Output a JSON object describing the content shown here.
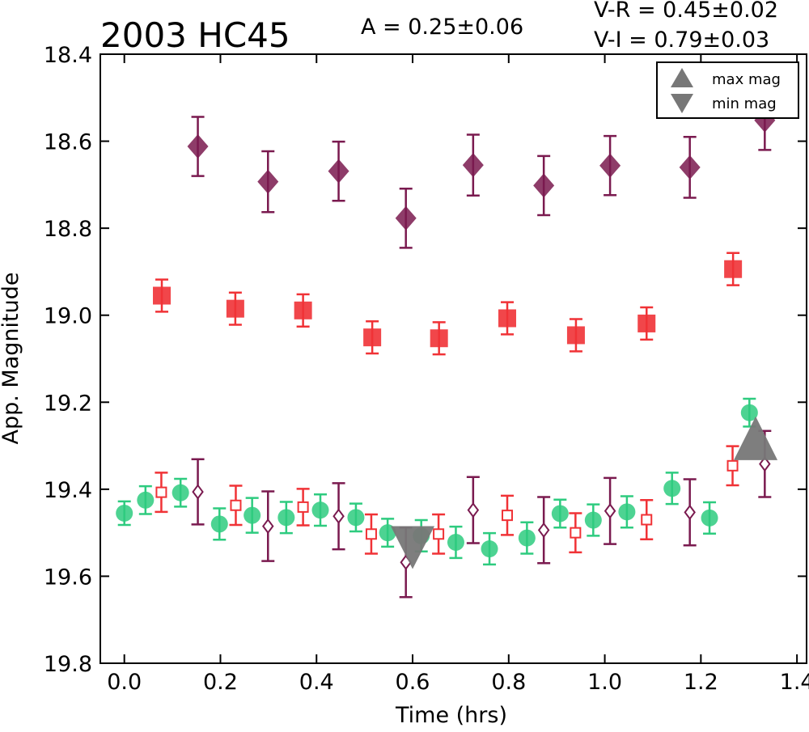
{
  "chart_data": {
    "type": "scatter",
    "title": "2003 HC45",
    "annotations": {
      "amplitude": "A  = 0.25±0.06",
      "v_r": "V-R = 0.45±0.02",
      "v_i": "V-I  = 0.79±0.03"
    },
    "xlabel": "Time (hrs)",
    "ylabel": "App. Magnitude",
    "xlim": [
      -0.05,
      1.42
    ],
    "ylim": [
      19.8,
      18.4
    ],
    "y_inverted": true,
    "grid": false,
    "xticks": [
      "0.0",
      "0.2",
      "0.4",
      "0.6",
      "0.8",
      "1.0",
      "1.2",
      "1.4"
    ],
    "xtick_values": [
      0.0,
      0.2,
      0.4,
      0.6,
      0.8,
      1.0,
      1.2,
      1.4
    ],
    "yticks": [
      "18.4",
      "18.6",
      "18.8",
      "19.0",
      "19.2",
      "19.4",
      "19.6",
      "19.8"
    ],
    "ytick_values": [
      18.4,
      18.6,
      18.8,
      19.0,
      19.2,
      19.4,
      19.6,
      19.8
    ],
    "legend": {
      "placement": "top-right",
      "entries": [
        {
          "label": "max mag",
          "marker": "triangle-up",
          "color": "#777777"
        },
        {
          "label": "min mag",
          "marker": "triangle-down",
          "color": "#777777"
        }
      ]
    },
    "series": [
      {
        "marker": "diamond-filled",
        "color": "#7a1a4f",
        "points": [
          {
            "x": 0.153,
            "y": 18.612,
            "err": 0.068
          },
          {
            "x": 0.299,
            "y": 18.693,
            "err": 0.07
          },
          {
            "x": 0.446,
            "y": 18.669,
            "err": 0.068
          },
          {
            "x": 0.586,
            "y": 18.777,
            "err": 0.068
          },
          {
            "x": 0.726,
            "y": 18.655,
            "err": 0.07
          },
          {
            "x": 0.873,
            "y": 18.702,
            "err": 0.068
          },
          {
            "x": 1.011,
            "y": 18.656,
            "err": 0.068
          },
          {
            "x": 1.177,
            "y": 18.66,
            "err": 0.07
          },
          {
            "x": 1.333,
            "y": 18.552,
            "err": 0.068
          }
        ]
      },
      {
        "marker": "square-filled",
        "color": "#f03236",
        "points": [
          {
            "x": 0.078,
            "y": 18.955,
            "err": 0.037
          },
          {
            "x": 0.231,
            "y": 18.985,
            "err": 0.037
          },
          {
            "x": 0.372,
            "y": 18.989,
            "err": 0.037
          },
          {
            "x": 0.516,
            "y": 19.051,
            "err": 0.037
          },
          {
            "x": 0.655,
            "y": 19.053,
            "err": 0.037
          },
          {
            "x": 0.797,
            "y": 19.007,
            "err": 0.037
          },
          {
            "x": 0.94,
            "y": 19.046,
            "err": 0.037
          },
          {
            "x": 1.087,
            "y": 19.019,
            "err": 0.037
          },
          {
            "x": 1.267,
            "y": 18.894,
            "err": 0.037
          }
        ]
      },
      {
        "marker": "circle-filled",
        "color": "#2ecb7f",
        "points": [
          {
            "x": 0.0,
            "y": 19.455,
            "err": 0.027
          },
          {
            "x": 0.044,
            "y": 19.425,
            "err": 0.032
          },
          {
            "x": 0.117,
            "y": 19.408,
            "err": 0.032
          },
          {
            "x": 0.198,
            "y": 19.48,
            "err": 0.036
          },
          {
            "x": 0.266,
            "y": 19.46,
            "err": 0.04
          },
          {
            "x": 0.337,
            "y": 19.465,
            "err": 0.036
          },
          {
            "x": 0.408,
            "y": 19.448,
            "err": 0.036
          },
          {
            "x": 0.482,
            "y": 19.465,
            "err": 0.032
          },
          {
            "x": 0.548,
            "y": 19.5,
            "err": 0.032
          },
          {
            "x": 0.618,
            "y": 19.507,
            "err": 0.036
          },
          {
            "x": 0.69,
            "y": 19.522,
            "err": 0.036
          },
          {
            "x": 0.76,
            "y": 19.537,
            "err": 0.036
          },
          {
            "x": 0.838,
            "y": 19.512,
            "err": 0.036
          },
          {
            "x": 0.907,
            "y": 19.456,
            "err": 0.032
          },
          {
            "x": 0.976,
            "y": 19.471,
            "err": 0.036
          },
          {
            "x": 1.046,
            "y": 19.452,
            "err": 0.036
          },
          {
            "x": 1.14,
            "y": 19.398,
            "err": 0.036
          },
          {
            "x": 1.218,
            "y": 19.466,
            "err": 0.036
          },
          {
            "x": 1.301,
            "y": 19.224,
            "err": 0.032
          }
        ]
      },
      {
        "marker": "square-open",
        "color": "#f03236",
        "points": [
          {
            "x": 0.077,
            "y": 19.407,
            "err": 0.045
          },
          {
            "x": 0.232,
            "y": 19.437,
            "err": 0.045
          },
          {
            "x": 0.372,
            "y": 19.441,
            "err": 0.042
          },
          {
            "x": 0.514,
            "y": 19.503,
            "err": 0.045
          },
          {
            "x": 0.654,
            "y": 19.503,
            "err": 0.045
          },
          {
            "x": 0.797,
            "y": 19.46,
            "err": 0.045
          },
          {
            "x": 0.939,
            "y": 19.5,
            "err": 0.045
          },
          {
            "x": 1.087,
            "y": 19.47,
            "err": 0.045
          },
          {
            "x": 1.266,
            "y": 19.346,
            "err": 0.045
          }
        ]
      },
      {
        "marker": "diamond-open",
        "color": "#7a1a4f",
        "points": [
          {
            "x": 0.153,
            "y": 19.406,
            "err": 0.075
          },
          {
            "x": 0.299,
            "y": 19.485,
            "err": 0.08
          },
          {
            "x": 0.446,
            "y": 19.462,
            "err": 0.076
          },
          {
            "x": 0.586,
            "y": 19.568,
            "err": 0.08
          },
          {
            "x": 0.726,
            "y": 19.448,
            "err": 0.076
          },
          {
            "x": 0.873,
            "y": 19.494,
            "err": 0.076
          },
          {
            "x": 1.011,
            "y": 19.45,
            "err": 0.076
          },
          {
            "x": 1.177,
            "y": 19.453,
            "err": 0.076
          },
          {
            "x": 1.333,
            "y": 19.342,
            "err": 0.076
          }
        ]
      }
    ],
    "markers": [
      {
        "kind": "triangle-down",
        "label": "min mag",
        "x": 0.6,
        "y": 19.535,
        "color": "#777777"
      },
      {
        "kind": "triangle-up",
        "label": "max mag",
        "x": 1.314,
        "y": 19.283,
        "color": "#777777"
      }
    ]
  }
}
